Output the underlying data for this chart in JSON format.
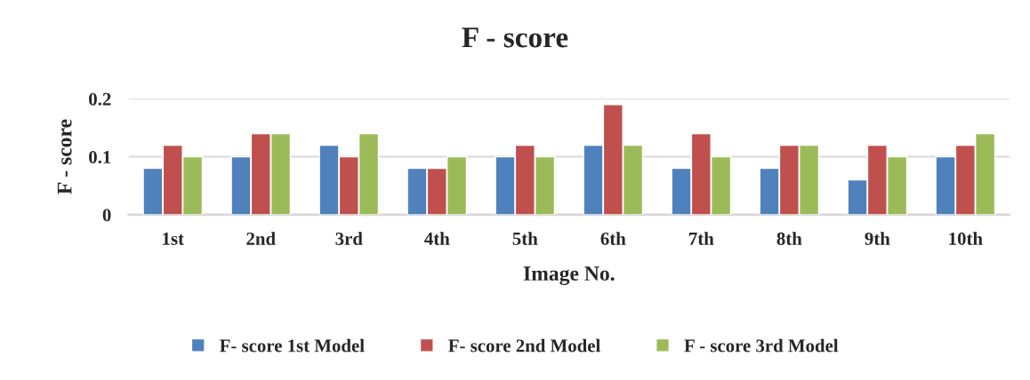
{
  "chart_data": {
    "type": "bar",
    "title": "F - score",
    "xlabel": "Image No.",
    "ylabel": "F - score",
    "categories": [
      "1st",
      "2nd",
      "3rd",
      "4th",
      "5th",
      "6th",
      "7th",
      "8th",
      "9th",
      "10th"
    ],
    "series": [
      {
        "name": "F- score 1st Model",
        "color": "#4f81bd",
        "values": [
          0.08,
          0.1,
          0.12,
          0.08,
          0.1,
          0.12,
          0.08,
          0.08,
          0.06,
          0.1
        ]
      },
      {
        "name": "F- score 2nd Model",
        "color": "#c0504d",
        "values": [
          0.12,
          0.14,
          0.1,
          0.08,
          0.12,
          0.19,
          0.14,
          0.12,
          0.12,
          0.12
        ]
      },
      {
        "name": "F - score 3rd Model",
        "color": "#9bbb59",
        "values": [
          0.1,
          0.14,
          0.14,
          0.1,
          0.1,
          0.12,
          0.1,
          0.12,
          0.1,
          0.14
        ]
      }
    ],
    "ylim": [
      0,
      0.2
    ],
    "yticks": [
      0,
      0.1,
      0.2
    ],
    "grid": "y",
    "legend": "bottom"
  }
}
